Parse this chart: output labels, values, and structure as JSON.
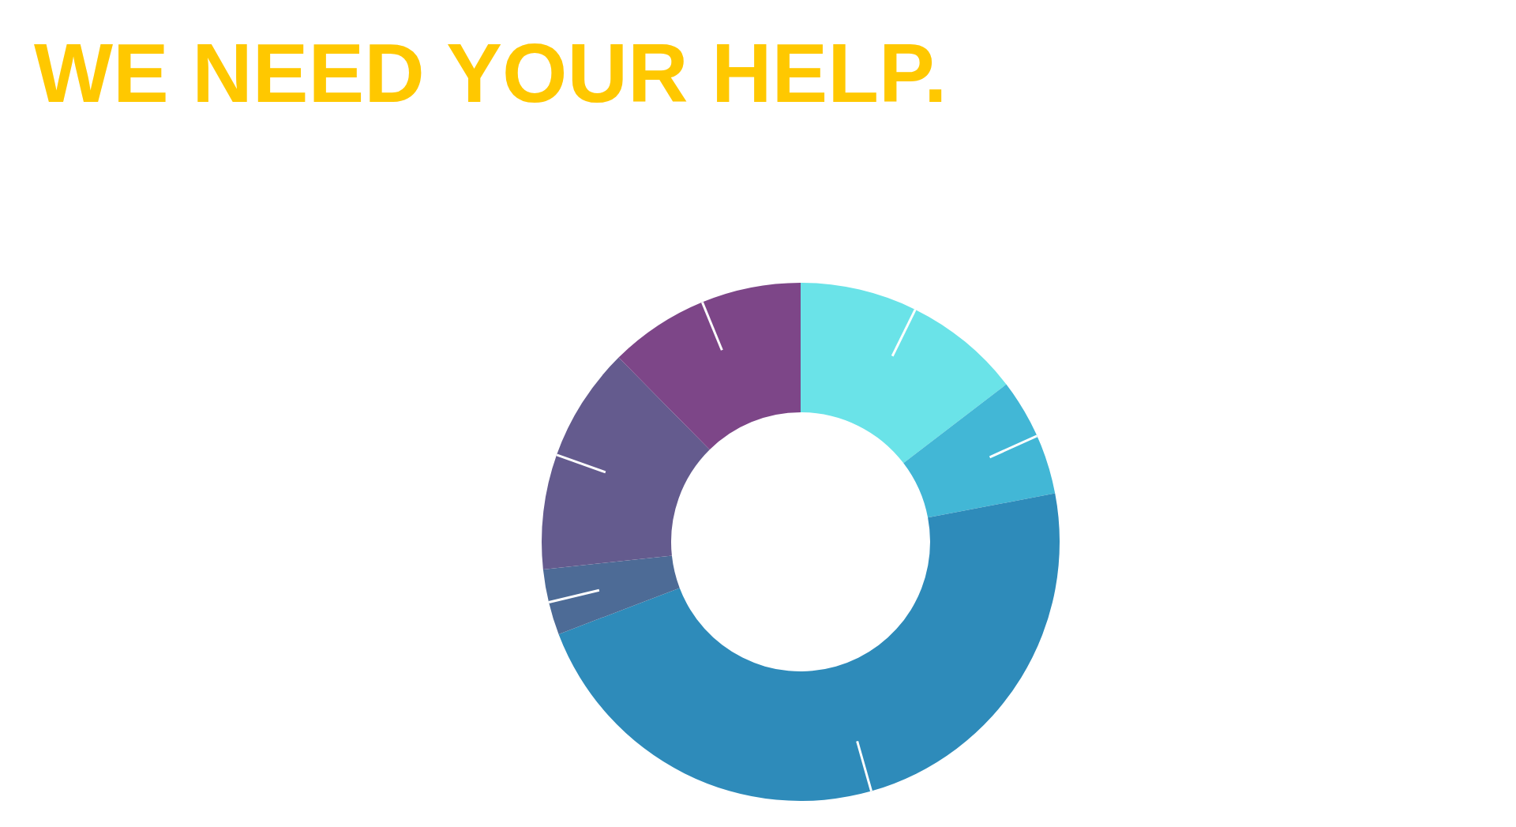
{
  "chart_data": {
    "type": "donut",
    "title": "WE NEED YOUR HELP.",
    "categories": [
      null,
      null,
      null,
      null,
      null,
      null
    ],
    "values": [
      14.6,
      7.4,
      47.2,
      4.1,
      14.3,
      12.4
    ],
    "colors": [
      "#6ae3e8",
      "#42b7d6",
      "#2e8bba",
      "#4d6b96",
      "#645b8e",
      "#7d4688"
    ]
  }
}
